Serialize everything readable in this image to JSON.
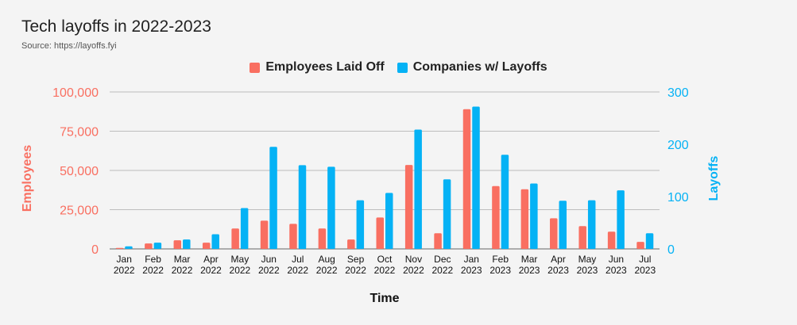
{
  "title": "Tech layoffs in 2022-2023",
  "subtitle": "Source: https://layoffs.fyi",
  "colors": {
    "employees": "#f96f61",
    "companies": "#05b2f5"
  },
  "chart_data": {
    "type": "bar",
    "title": "Tech layoffs in 2022-2023",
    "subtitle": "Source: https://layoffs.fyi",
    "xlabel": "Time",
    "ylabel": "Employees",
    "y2label": "Layoffs",
    "ylim": [
      0,
      100000
    ],
    "y2lim": [
      0,
      300
    ],
    "yticks": [
      "0",
      "25,000",
      "50,000",
      "75,000",
      "100,000"
    ],
    "y2ticks": [
      "0",
      "100",
      "200",
      "300"
    ],
    "grid": true,
    "legend": "top-center",
    "categories": [
      [
        "Jan",
        "2022"
      ],
      [
        "Feb",
        "2022"
      ],
      [
        "Mar",
        "2022"
      ],
      [
        "Apr",
        "2022"
      ],
      [
        "May",
        "2022"
      ],
      [
        "Jun",
        "2022"
      ],
      [
        "Jul",
        "2022"
      ],
      [
        "Aug",
        "2022"
      ],
      [
        "Sep",
        "2022"
      ],
      [
        "Oct",
        "2022"
      ],
      [
        "Nov",
        "2022"
      ],
      [
        "Dec",
        "2022"
      ],
      [
        "Jan",
        "2023"
      ],
      [
        "Feb",
        "2023"
      ],
      [
        "Mar",
        "2023"
      ],
      [
        "Apr",
        "2023"
      ],
      [
        "May",
        "2023"
      ],
      [
        "Jun",
        "2023"
      ],
      [
        "Jul",
        "2023"
      ]
    ],
    "series": [
      {
        "name": "Employees Laid Off",
        "axis": "left",
        "values": [
          600,
          3500,
          5500,
          4000,
          13000,
          18000,
          16000,
          13000,
          6000,
          20000,
          53500,
          10000,
          89000,
          40000,
          38000,
          19500,
          14500,
          11000,
          4500
        ]
      },
      {
        "name": "Companies w/ Layoffs",
        "axis": "right",
        "values": [
          5,
          12,
          18,
          28,
          78,
          195,
          160,
          157,
          93,
          107,
          228,
          133,
          272,
          180,
          125,
          92,
          93,
          112,
          30
        ]
      }
    ]
  }
}
